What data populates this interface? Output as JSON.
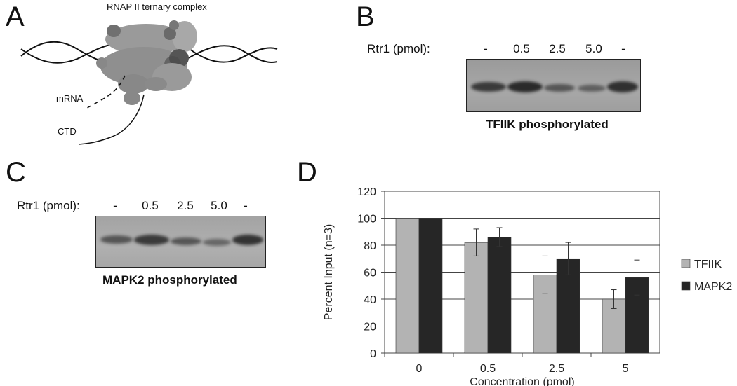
{
  "panel_a": {
    "letter": "A",
    "title": "RNAP II ternary complex",
    "mrna_label": "mRNA",
    "ctd_label": "CTD"
  },
  "panel_b": {
    "letter": "B",
    "row_label": "Rtr1 (pmol):",
    "lanes": [
      "-",
      "0.5",
      "2.5",
      "5.0",
      "-"
    ],
    "caption": "TFIIK phosphorylated",
    "band_intensities": [
      0.9,
      1.0,
      0.6,
      0.45,
      0.95
    ]
  },
  "panel_c": {
    "letter": "C",
    "row_label": "Rtr1 (pmol):",
    "lanes": [
      "-",
      "0.5",
      "2.5",
      "5.0",
      "-"
    ],
    "caption": "MAPK2 phosphorylated",
    "band_intensities": [
      0.8,
      0.95,
      0.65,
      0.5,
      0.95
    ]
  },
  "panel_d": {
    "letter": "D"
  },
  "chart_data": {
    "type": "bar",
    "categories": [
      "0",
      "0.5",
      "2.5",
      "5"
    ],
    "series": [
      {
        "name": "TFIIK",
        "values": [
          100,
          82,
          58,
          40
        ],
        "errors": [
          0,
          10,
          14,
          7
        ],
        "color": "#b3b3b3"
      },
      {
        "name": "MAPK2",
        "values": [
          100,
          86,
          70,
          56
        ],
        "errors": [
          0,
          7,
          12,
          13
        ],
        "color": "#262626"
      }
    ],
    "xlabel": "Concentration (pmol)",
    "ylabel": "Percent Input (n=3)",
    "ylim": [
      0,
      120
    ],
    "yticks": [
      0,
      20,
      40,
      60,
      80,
      100,
      120
    ],
    "grid": true,
    "legend_position": "right"
  }
}
